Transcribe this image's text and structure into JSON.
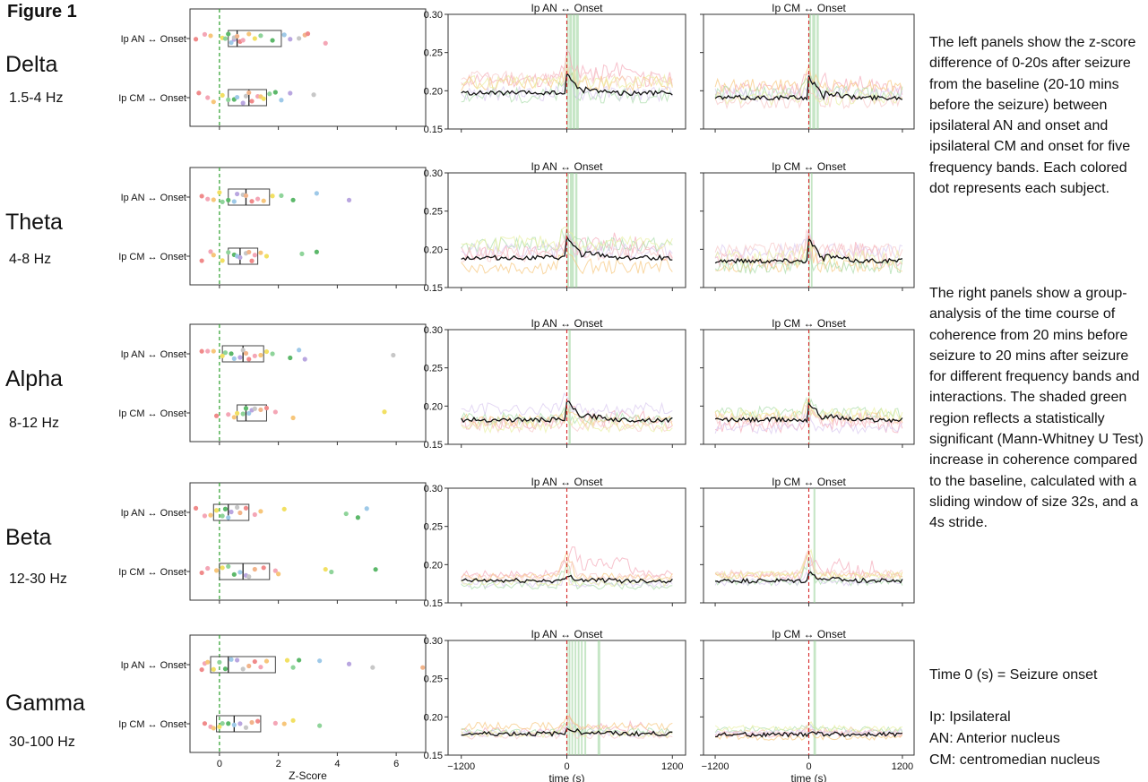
{
  "figure_title": "Figure 1",
  "bands": [
    {
      "name": "Delta",
      "range": "1.5-4 Hz"
    },
    {
      "name": "Theta",
      "range": "4-8 Hz"
    },
    {
      "name": "Alpha",
      "range": "8-12 Hz"
    },
    {
      "name": "Beta",
      "range": "12-30 Hz"
    },
    {
      "name": "Gamma",
      "range": "30-100 Hz"
    }
  ],
  "description": {
    "para1": "The left panels show the z-score difference of 0-20s after seizure from the baseline (20-10 mins before the seizure) between ipsilateral AN and onset and ipsilateral CM and onset for five frequency bands. Each colored dot represents each subject.",
    "para2": "The right panels show a group-analysis of the time course of coherence from 20 mins before seizure to 20 mins after seizure for different frequency bands and interactions. The shaded green region reflects a statistically significant (Mann-Whitney U Test) increase in coherence compared to the baseline, calculated with a sliding window of size 32s, and a  4s stride.",
    "time_note": "Time 0 (s) = Seizure onset",
    "legend": [
      "Ip: Ipsilateral",
      "AN: Anterior nucleus",
      "CM: centromedian nucleus"
    ]
  },
  "colors": {
    "axis": "#333333",
    "mean_line": "#111111",
    "zero_line": "#2ca02c",
    "onset_line": "#d62728",
    "significant_shade": "#98d198",
    "dot_palette": [
      "#f08a8a",
      "#f4a6b6",
      "#f7c67a",
      "#f2e063",
      "#8fd49a",
      "#5cb86a",
      "#9ec9e8",
      "#b9a6e0",
      "#c7c7c7",
      "#f2b48a"
    ],
    "subject_lines": [
      "#f4a6b6",
      "#f7c67a",
      "#a8dca8",
      "#d8c8f0",
      "#f6c6c6",
      "#e8f0a0"
    ]
  },
  "chart_data": {
    "boxplots": {
      "type": "box-strip",
      "xlabel": "Z-Score",
      "xlim": [
        -1,
        7
      ],
      "xticks": [
        0,
        2,
        4,
        6
      ],
      "zero_line": 0,
      "categories": [
        "Ip AN ↔ Onset",
        "Ip CM ↔ Onset"
      ],
      "panels": [
        {
          "band": "Delta",
          "an": {
            "box": [
              0.3,
              0.6,
              2.1
            ],
            "points": [
              -0.8,
              -0.5,
              -0.3,
              0.1,
              0.2,
              0.3,
              0.4,
              0.5,
              0.5,
              0.6,
              0.7,
              0.8,
              1.0,
              1.2,
              1.4,
              1.8,
              2.2,
              2.4,
              2.7,
              2.9,
              3.0,
              3.6
            ]
          },
          "cm": {
            "box": [
              0.3,
              1.0,
              1.6
            ],
            "points": [
              -0.7,
              -0.4,
              -0.2,
              0.1,
              0.3,
              0.5,
              0.6,
              0.8,
              0.9,
              1.0,
              1.1,
              1.3,
              1.4,
              1.5,
              1.7,
              1.9,
              2.1,
              2.4,
              3.2
            ]
          }
        },
        {
          "band": "Theta",
          "an": {
            "box": [
              0.3,
              0.9,
              1.7
            ],
            "points": [
              -0.6,
              -0.4,
              -0.2,
              0.0,
              0.1,
              0.3,
              0.5,
              0.6,
              0.8,
              0.9,
              1.1,
              1.3,
              1.5,
              1.8,
              2.1,
              2.5,
              3.3,
              4.4
            ]
          },
          "cm": {
            "box": [
              0.3,
              0.7,
              1.3
            ],
            "points": [
              -0.6,
              -0.3,
              -0.2,
              0.1,
              0.3,
              0.5,
              0.6,
              0.7,
              0.9,
              1.0,
              1.1,
              1.2,
              1.4,
              1.6,
              2.8,
              3.3
            ]
          }
        },
        {
          "band": "Alpha",
          "an": {
            "box": [
              0.1,
              0.8,
              1.5
            ],
            "points": [
              -0.6,
              -0.4,
              -0.2,
              0.1,
              0.2,
              0.4,
              0.5,
              0.7,
              0.8,
              0.9,
              1.0,
              1.2,
              1.4,
              1.6,
              1.8,
              2.4,
              2.7,
              2.9,
              5.9
            ]
          },
          "cm": {
            "box": [
              0.6,
              0.9,
              1.6
            ],
            "points": [
              -0.1,
              0.3,
              0.5,
              0.6,
              0.8,
              0.9,
              1.0,
              1.1,
              1.2,
              1.4,
              1.6,
              1.9,
              2.5,
              5.6
            ]
          }
        },
        {
          "band": "Beta",
          "an": {
            "box": [
              -0.2,
              0.3,
              1.0
            ],
            "points": [
              -0.8,
              -0.5,
              -0.3,
              -0.1,
              0.1,
              0.2,
              0.3,
              0.4,
              0.6,
              0.7,
              0.9,
              1.2,
              1.4,
              2.2,
              4.3,
              4.7,
              5.0
            ]
          },
          "cm": {
            "box": [
              0.0,
              0.8,
              1.7
            ],
            "points": [
              -0.6,
              -0.4,
              -0.1,
              0.1,
              0.3,
              0.5,
              0.7,
              0.9,
              1.0,
              1.2,
              1.5,
              1.9,
              2.0,
              3.6,
              3.8,
              5.3
            ]
          }
        },
        {
          "band": "Gamma",
          "an": {
            "box": [
              -0.3,
              0.3,
              1.9
            ],
            "points": [
              -0.6,
              -0.5,
              -0.4,
              -0.2,
              0.0,
              0.2,
              0.4,
              0.6,
              0.8,
              1.0,
              1.2,
              1.4,
              1.6,
              2.3,
              2.5,
              2.7,
              3.4,
              4.4,
              5.2,
              6.9
            ]
          },
          "cm": {
            "box": [
              -0.1,
              0.5,
              1.4
            ],
            "points": [
              -0.5,
              -0.3,
              -0.2,
              0.0,
              0.1,
              0.3,
              0.5,
              0.7,
              0.9,
              1.1,
              1.3,
              1.9,
              2.2,
              2.5,
              3.4
            ]
          }
        }
      ]
    },
    "timecourses": {
      "type": "line",
      "xlabel": "time (s)",
      "xlim": [
        -1350,
        1350
      ],
      "xticks": [
        -1200,
        0,
        1200
      ],
      "xtick_labels": [
        "−1200",
        "0",
        "1200"
      ],
      "ylim": [
        0.15,
        0.3
      ],
      "yticks": [
        0.15,
        0.2,
        0.25,
        0.3
      ],
      "ytick_labels": [
        "0.15",
        "0.20",
        "0.25",
        "0.30"
      ],
      "onset": 0,
      "panels": [
        {
          "band": "Delta",
          "title": "Ip AN ↔ Onset",
          "baseline": 0.197,
          "peak": 0.22,
          "spread": 0.025,
          "spike": 0.04,
          "shade": [
            [
              0,
              20
            ],
            [
              28,
              56
            ],
            [
              64,
              96
            ],
            [
              104,
              136
            ]
          ],
          "seed": 11
        },
        {
          "band": "Delta",
          "title": "Ip CM ↔ Onset",
          "baseline": 0.191,
          "peak": 0.218,
          "spread": 0.022,
          "spike": 0.035,
          "shade": [
            [
              0,
              30
            ],
            [
              44,
              84
            ],
            [
              100,
              128
            ]
          ],
          "seed": 12
        },
        {
          "band": "Theta",
          "title": "Ip AN ↔ Onset",
          "baseline": 0.189,
          "peak": 0.215,
          "spread": 0.025,
          "spike": 0.04,
          "shade": [
            [
              0,
              24
            ],
            [
              36,
              80
            ],
            [
              96,
              120
            ]
          ],
          "seed": 13
        },
        {
          "band": "Theta",
          "title": "Ip CM ↔ Onset",
          "baseline": 0.185,
          "peak": 0.213,
          "spread": 0.024,
          "spike": 0.035,
          "shade": [
            [
              0,
              16
            ],
            [
              28,
              48
            ]
          ],
          "seed": 14
        },
        {
          "band": "Alpha",
          "title": "Ip AN ↔ Onset",
          "baseline": 0.182,
          "peak": 0.206,
          "spread": 0.02,
          "spike": 0.03,
          "shade": [
            [
              20,
              44
            ]
          ],
          "seed": 15
        },
        {
          "band": "Alpha",
          "title": "Ip CM ↔ Onset",
          "baseline": 0.182,
          "peak": 0.204,
          "spread": 0.02,
          "spike": 0.03,
          "shade": [
            [
              0,
              12
            ]
          ],
          "seed": 16
        },
        {
          "band": "Beta",
          "title": "Ip AN ↔ Onset",
          "baseline": 0.179,
          "peak": 0.185,
          "spread": 0.012,
          "spike": 0.05,
          "shade": [],
          "seed": 17
        },
        {
          "band": "Beta",
          "title": "Ip CM ↔ Onset",
          "baseline": 0.179,
          "peak": 0.19,
          "spread": 0.012,
          "spike": 0.04,
          "shade": [
            [
              60,
              84
            ]
          ],
          "seed": 18
        },
        {
          "band": "Gamma",
          "title": "Ip AN ↔ Onset",
          "baseline": 0.178,
          "peak": 0.187,
          "spread": 0.012,
          "spike": 0.02,
          "shade": [
            [
              0,
              12
            ],
            [
              20,
              40
            ],
            [
              52,
              72
            ],
            [
              88,
              108
            ],
            [
              124,
              144
            ],
            [
              160,
              180
            ],
            [
              200,
              220
            ],
            [
              350,
              380
            ]
          ],
          "seed": 19
        },
        {
          "band": "Gamma",
          "title": "Ip CM ↔ Onset",
          "baseline": 0.177,
          "peak": 0.181,
          "spread": 0.01,
          "spike": 0.012,
          "shade": [
            [
              60,
              92
            ]
          ],
          "seed": 20
        }
      ]
    }
  }
}
